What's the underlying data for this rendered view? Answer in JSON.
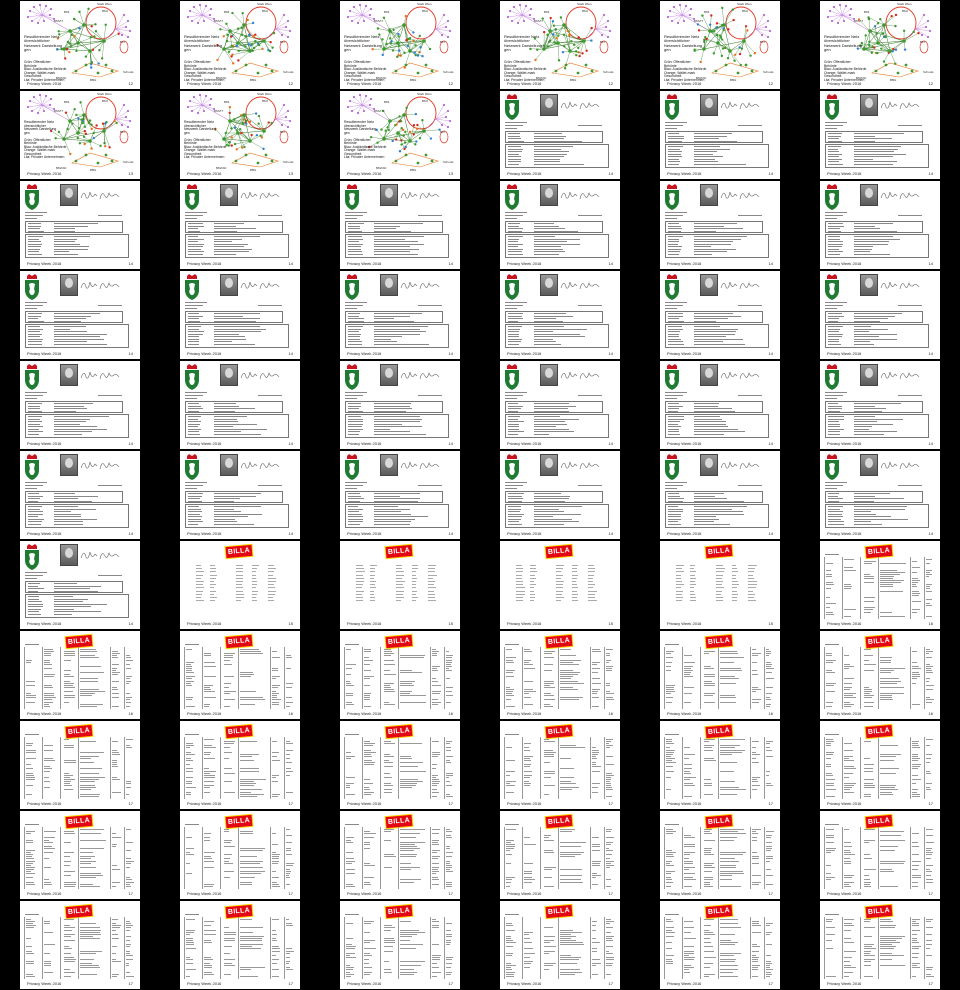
{
  "document": {
    "footer_label": "Privacy Week 2016",
    "brand_label": "BILLA",
    "network_top_labels": [
      "Stadt Wien",
      "BMI",
      "BMJ",
      "BMVIT"
    ],
    "network_node_labels": [
      "BMASK",
      "BBG",
      "BFI",
      "Schools"
    ],
    "network_caption_a": "Resultierender Netz\nübersichtlicher\nNetzwerk Darstellung\ngen",
    "network_caption_b": "Grün: Öffentlicher\nBehörde\nBlau: Ausländische Behörde\nOrange: Wallet-mark\nGesundheit\nLila: Privater Unternehmen",
    "network_caption_c": "Resultierender Netz\nübersichtlicher\nNetzwerk Darstellung\ngen\n\nGrün: Öffentlicher\nBehörde\nBlau: Ausländische Behörde\nOrange: Wallet-mark\nGesundheit\nLila: Privater Unternehmen"
  },
  "pages": [
    {
      "type": "network",
      "number": "12"
    },
    {
      "type": "network",
      "number": "12"
    },
    {
      "type": "network",
      "number": "12"
    },
    {
      "type": "network",
      "number": "12"
    },
    {
      "type": "network",
      "number": "12"
    },
    {
      "type": "network",
      "number": "12"
    },
    {
      "type": "network",
      "number": "13"
    },
    {
      "type": "network",
      "number": "13"
    },
    {
      "type": "network",
      "number": "13"
    },
    {
      "type": "record",
      "number": "14"
    },
    {
      "type": "record",
      "number": "14"
    },
    {
      "type": "record",
      "number": "14"
    },
    {
      "type": "record",
      "number": "14"
    },
    {
      "type": "record",
      "number": "14"
    },
    {
      "type": "record",
      "number": "14"
    },
    {
      "type": "record",
      "number": "14"
    },
    {
      "type": "record",
      "number": "14"
    },
    {
      "type": "record",
      "number": "14"
    },
    {
      "type": "record",
      "number": "14"
    },
    {
      "type": "record",
      "number": "14"
    },
    {
      "type": "record",
      "number": "14"
    },
    {
      "type": "record",
      "number": "14"
    },
    {
      "type": "record",
      "number": "14"
    },
    {
      "type": "record",
      "number": "14"
    },
    {
      "type": "record",
      "number": "14"
    },
    {
      "type": "record",
      "number": "14"
    },
    {
      "type": "record",
      "number": "14"
    },
    {
      "type": "record",
      "number": "14"
    },
    {
      "type": "record",
      "number": "14"
    },
    {
      "type": "record",
      "number": "14"
    },
    {
      "type": "record",
      "number": "14"
    },
    {
      "type": "record",
      "number": "14"
    },
    {
      "type": "record",
      "number": "14"
    },
    {
      "type": "record",
      "number": "14"
    },
    {
      "type": "record",
      "number": "14"
    },
    {
      "type": "record",
      "number": "14"
    },
    {
      "type": "record",
      "number": "14"
    },
    {
      "type": "billa-summary",
      "number": "15"
    },
    {
      "type": "billa-summary",
      "number": "15"
    },
    {
      "type": "billa-summary",
      "number": "15"
    },
    {
      "type": "billa-summary",
      "number": "15"
    },
    {
      "type": "billa-table",
      "number": "16"
    },
    {
      "type": "billa-table",
      "number": "16"
    },
    {
      "type": "billa-table",
      "number": "16"
    },
    {
      "type": "billa-table",
      "number": "16"
    },
    {
      "type": "billa-table",
      "number": "16"
    },
    {
      "type": "billa-table",
      "number": "16"
    },
    {
      "type": "billa-table",
      "number": "16"
    },
    {
      "type": "billa-table",
      "number": "17"
    },
    {
      "type": "billa-table",
      "number": "17"
    },
    {
      "type": "billa-table",
      "number": "17"
    },
    {
      "type": "billa-table",
      "number": "17"
    },
    {
      "type": "billa-table",
      "number": "17"
    },
    {
      "type": "billa-table",
      "number": "17"
    },
    {
      "type": "billa-table",
      "number": "17"
    },
    {
      "type": "billa-table",
      "number": "17"
    },
    {
      "type": "billa-table",
      "number": "17"
    },
    {
      "type": "billa-table",
      "number": "17"
    },
    {
      "type": "billa-table",
      "number": "17"
    },
    {
      "type": "billa-table",
      "number": "17"
    },
    {
      "type": "billa-table",
      "number": "17"
    },
    {
      "type": "billa-table",
      "number": "17"
    },
    {
      "type": "billa-table",
      "number": "17"
    },
    {
      "type": "billa-table",
      "number": "17"
    },
    {
      "type": "billa-table",
      "number": "17"
    },
    {
      "type": "billa-table",
      "number": "17"
    }
  ],
  "colors": {
    "background": "#000000",
    "page": "#ffffff",
    "node_purple": "#b469d6",
    "node_green": "#3c9a2e",
    "node_blue": "#2f7fd8",
    "node_orange": "#e8731e",
    "node_red": "#d8281c",
    "edge_green": "#2f7a22",
    "ring_red": "#e0351e",
    "crest_green": "#1f7a32",
    "billa_red": "#e30613",
    "billa_yellow": "#ffd400"
  }
}
